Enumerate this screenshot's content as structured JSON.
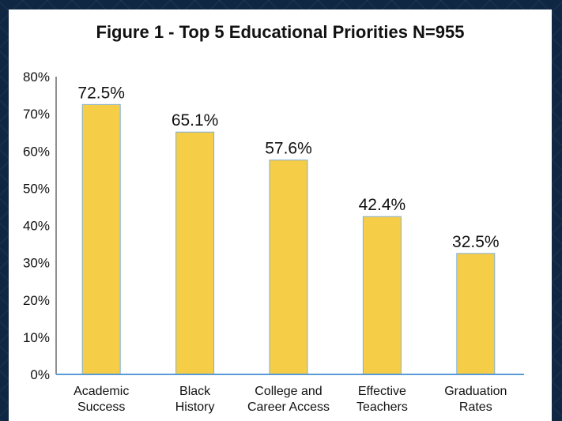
{
  "chart_data": {
    "type": "bar",
    "title": "Figure 1 - Top 5 Educational Priorities N=955",
    "categories": [
      [
        "Academic",
        "Success"
      ],
      [
        "Black",
        "History"
      ],
      [
        "College and",
        "Career Access"
      ],
      [
        "Effective",
        "Teachers"
      ],
      [
        "Graduation",
        "Rates"
      ]
    ],
    "values": [
      72.5,
      65.1,
      57.6,
      42.4,
      32.5
    ],
    "value_labels": [
      "72.5%",
      "65.1%",
      "57.6%",
      "42.4%",
      "32.5%"
    ],
    "yticks": [
      "0%",
      "10%",
      "20%",
      "30%",
      "40%",
      "50%",
      "60%",
      "70%",
      "80%"
    ],
    "ylim": [
      0,
      80
    ],
    "bar_color": "#f5cd47",
    "bar_edge_color": "#7fb0d8",
    "axis_color": "#5b9bd5",
    "grid": false,
    "legend": "none"
  }
}
